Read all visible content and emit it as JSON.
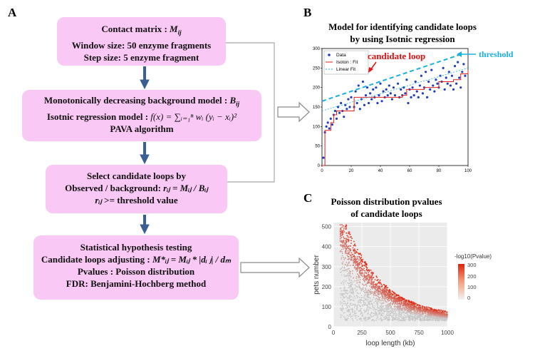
{
  "panel_labels": {
    "a": "A",
    "b": "B",
    "c": "C"
  },
  "flowchart": {
    "box1": {
      "line1_prefix": "Contact matrix : ",
      "line1_math": "M",
      "line1_sub": "ij",
      "line2": "Window size: 50 enzyme fragments",
      "line3": "Step size: 5 enzyme fragment"
    },
    "box2": {
      "line1_prefix": "Monotonically decreasing background model : ",
      "line1_math": "B",
      "line1_sub": "ij",
      "line2_prefix": "Isotnic regression model : ",
      "line2_formula": "f(x) = ∑ᵢ₌₁ⁿ wᵢ (yᵢ − xᵢ)²",
      "line3": "PAVA algorithm"
    },
    "box3": {
      "line1": "Select candidate loops by",
      "line2_prefix": "Observed / background: ",
      "line2_formula": "rᵢⱼ = Mᵢⱼ / Bᵢⱼ",
      "line3_formula": "rᵢⱼ",
      "line3_suffix": " >=  threshold value"
    },
    "box4": {
      "line1": "Statistical hypothesis testing",
      "line2_prefix": "Candidate loops adjusting : ",
      "line2_formula": "M*ᵢⱼ = Mᵢⱼ * |dᵢ ⱼ| / dₘ",
      "line3": "Pvalues :  Poisson distribution",
      "line4": "FDR: Benjamini-Hochberg method"
    }
  },
  "panel_b": {
    "title_line1": "Model for identifying candidate loops",
    "title_line2": "by using Isotnic regression",
    "annotation_candidate": "candidate loop",
    "annotation_threshold": "threshold",
    "legend": [
      "Data",
      "Isoton : Fit",
      "Linear Fit"
    ],
    "colors": {
      "data": "#1f3fbf",
      "isoton": "#e02020",
      "linear": "#1ab0e0",
      "annotation": "#e81010",
      "threshold": "#1ab0e0"
    }
  },
  "panel_c": {
    "title_line1": "Poisson distribution pvalues",
    "title_line2": "of candidate loops",
    "colorbar_title": "-log10(Pvalue)",
    "colorbar_ticks": [
      "300",
      "200",
      "100",
      "0"
    ],
    "colors": {
      "low": "#c8c8c8",
      "high": "#e0220a",
      "background": "#ebebeb"
    }
  },
  "chart_data": [
    {
      "type": "scatter",
      "title": "Model for identifying candidate loops by using Isotnic regression",
      "xlim": [
        0,
        100
      ],
      "ylim": [
        0,
        300
      ],
      "x_ticks": [
        "0",
        "20",
        "40",
        "60",
        "80",
        "100"
      ],
      "y_ticks": [
        "0",
        "50",
        "100",
        "150",
        "200",
        "250",
        "300"
      ],
      "legend_position": "top-left",
      "series": [
        {
          "name": "Data",
          "points": [
            [
              1,
              20
            ],
            [
              2,
              85
            ],
            [
              3,
              100
            ],
            [
              4,
              110
            ],
            [
              5,
              95
            ],
            [
              6,
              120
            ],
            [
              7,
              105
            ],
            [
              8,
              130
            ],
            [
              9,
              140
            ],
            [
              10,
              120
            ],
            [
              11,
              150
            ],
            [
              12,
              135
            ],
            [
              13,
              160
            ],
            [
              14,
              140
            ],
            [
              15,
              125
            ],
            [
              16,
              155
            ],
            [
              17,
              145
            ],
            [
              18,
              170
            ],
            [
              19,
              150
            ],
            [
              20,
              175
            ],
            [
              22,
              150
            ],
            [
              23,
              190
            ],
            [
              24,
              160
            ],
            [
              25,
              205
            ],
            [
              26,
              145
            ],
            [
              27,
              170
            ],
            [
              28,
              215
            ],
            [
              29,
              155
            ],
            [
              30,
              180
            ],
            [
              31,
              200
            ],
            [
              32,
              160
            ],
            [
              33,
              185
            ],
            [
              34,
              170
            ],
            [
              35,
              195
            ],
            [
              36,
              175
            ],
            [
              37,
              200
            ],
            [
              38,
              160
            ],
            [
              39,
              180
            ],
            [
              40,
              210
            ],
            [
              41,
              165
            ],
            [
              42,
              190
            ],
            [
              43,
              175
            ],
            [
              44,
              195
            ],
            [
              45,
              180
            ],
            [
              46,
              205
            ],
            [
              47,
              185
            ],
            [
              48,
              170
            ],
            [
              49,
              200
            ],
            [
              50,
              180
            ],
            [
              52,
              210
            ],
            [
              53,
              175
            ],
            [
              54,
              195
            ],
            [
              55,
              180
            ],
            [
              56,
              200
            ],
            [
              57,
              185
            ],
            [
              58,
              220
            ],
            [
              59,
              160
            ],
            [
              60,
              195
            ],
            [
              61,
              175
            ],
            [
              62,
              200
            ],
            [
              63,
              180
            ],
            [
              64,
              215
            ],
            [
              65,
              190
            ],
            [
              66,
              175
            ],
            [
              67,
              205
            ],
            [
              68,
              230
            ],
            [
              69,
              185
            ],
            [
              70,
              200
            ],
            [
              71,
              240
            ],
            [
              72,
              175
            ],
            [
              73,
              215
            ],
            [
              74,
              195
            ],
            [
              75,
              245
            ],
            [
              76,
              205
            ],
            [
              77,
              190
            ],
            [
              78,
              220
            ],
            [
              79,
              210
            ],
            [
              80,
              200
            ],
            [
              81,
              230
            ],
            [
              82,
              215
            ],
            [
              83,
              250
            ],
            [
              84,
              195
            ],
            [
              85,
              225
            ],
            [
              86,
              210
            ],
            [
              87,
              240
            ],
            [
              88,
              205
            ],
            [
              89,
              230
            ],
            [
              90,
              195
            ],
            [
              91,
              255
            ],
            [
              92,
              210
            ],
            [
              93,
              265
            ],
            [
              94,
              225
            ],
            [
              95,
              200
            ],
            [
              96,
              240
            ],
            [
              97,
              260
            ],
            [
              98,
              230
            ]
          ]
        },
        {
          "name": "Isoton : Fit",
          "points": [
            [
              0,
              0
            ],
            [
              2,
              90
            ],
            [
              6,
              110
            ],
            [
              8,
              130
            ],
            [
              10,
              140
            ],
            [
              20,
              140
            ],
            [
              22,
              175
            ],
            [
              55,
              180
            ],
            [
              58,
              195
            ],
            [
              70,
              200
            ],
            [
              80,
              215
            ],
            [
              90,
              220
            ],
            [
              95,
              235
            ],
            [
              100,
              245
            ]
          ]
        },
        {
          "name": "Linear Fit",
          "points": [
            [
              0,
              140
            ],
            [
              100,
              250
            ]
          ]
        },
        {
          "name": "threshold",
          "points": [
            [
              0,
              165
            ],
            [
              100,
              285
            ]
          ]
        }
      ]
    },
    {
      "type": "scatter",
      "title": "Poisson distribution pvalues of candidate loops",
      "xlabel": "loop length (kb)",
      "ylabel": "pets number",
      "xlim": [
        0,
        1000
      ],
      "ylim": [
        0,
        520
      ],
      "x_ticks": [
        "0",
        "250",
        "500",
        "750",
        "1000"
      ],
      "y_ticks": [
        "0",
        "100",
        "200",
        "300",
        "400",
        "500"
      ],
      "color_scale": {
        "label": "-log10(Pvalue)",
        "range": [
          0,
          300
        ]
      }
    }
  ]
}
